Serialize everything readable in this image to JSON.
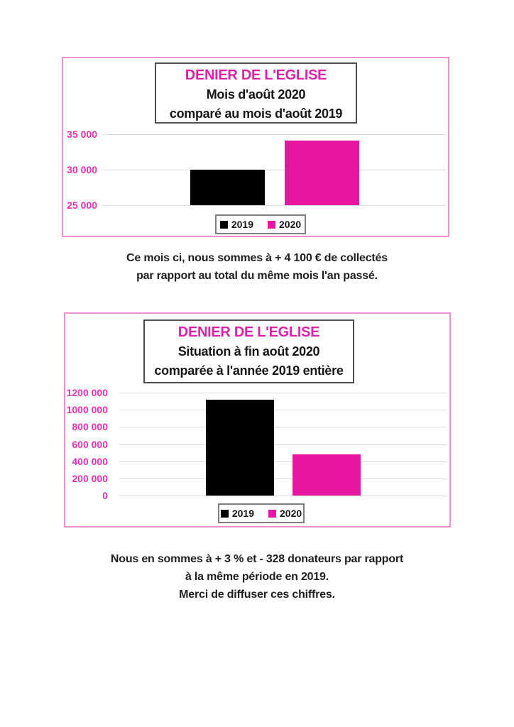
{
  "page": {
    "background": "#ffffff",
    "caption1_lines": [
      "Ce mois ci, nous sommes à + 4 100 € de collectés",
      "par rapport au total du même mois l'an passé."
    ],
    "caption2_lines": [
      "Nous en sommes à + 3 % et - 328 donateurs par rapport",
      "à la même période en 2019.",
      "Merci de diffuser ces chiffres."
    ]
  },
  "colors": {
    "title_magenta": "#dd22a5",
    "tick_magenta": "#e832ac",
    "bar_magenta": "#e6169e",
    "bar_black": "#000000",
    "frame_border_pink": "#ee8fd0",
    "gridline_gray": "#d9d9d9",
    "text_black": "#1f1f1f"
  },
  "chart_data": [
    {
      "type": "bar",
      "title": "DENIER DE L'EGLISE",
      "subtitle_lines": [
        "Mois d'août 2020",
        "comparé au mois d'août 2019"
      ],
      "categories": [
        "2019",
        "2020"
      ],
      "series": [
        {
          "name": "2019",
          "color": "#000000",
          "values": [
            30000
          ]
        },
        {
          "name": "2020",
          "color": "#e6169e",
          "values": [
            34100
          ]
        }
      ],
      "ylim": [
        25000,
        35000
      ],
      "yticks": [
        {
          "label": "35 000",
          "value": 35000
        },
        {
          "label": "30 000",
          "value": 30000
        },
        {
          "label": "25 000",
          "value": 25000
        }
      ],
      "grid": true,
      "legend_position": "bottom",
      "legend": [
        "2019",
        "2020"
      ]
    },
    {
      "type": "bar",
      "title": "DENIER DE L'EGLISE",
      "subtitle_lines": [
        "Situation à fin août 2020",
        "comparée à l'année 2019 entière"
      ],
      "categories": [
        "2019",
        "2020"
      ],
      "series": [
        {
          "name": "2019",
          "color": "#000000",
          "values": [
            1120000
          ]
        },
        {
          "name": "2020",
          "color": "#e6169e",
          "values": [
            480000
          ]
        }
      ],
      "ylim": [
        0,
        1200000
      ],
      "yticks": [
        {
          "label": "1200 000",
          "value": 1200000
        },
        {
          "label": "1000 000",
          "value": 1000000
        },
        {
          "label": "800 000",
          "value": 800000
        },
        {
          "label": "600 000",
          "value": 600000
        },
        {
          "label": "400 000",
          "value": 400000
        },
        {
          "label": "200 000",
          "value": 200000
        },
        {
          "label": "0",
          "value": 0
        }
      ],
      "grid": true,
      "legend_position": "bottom",
      "legend": [
        "2019",
        "2020"
      ]
    }
  ]
}
